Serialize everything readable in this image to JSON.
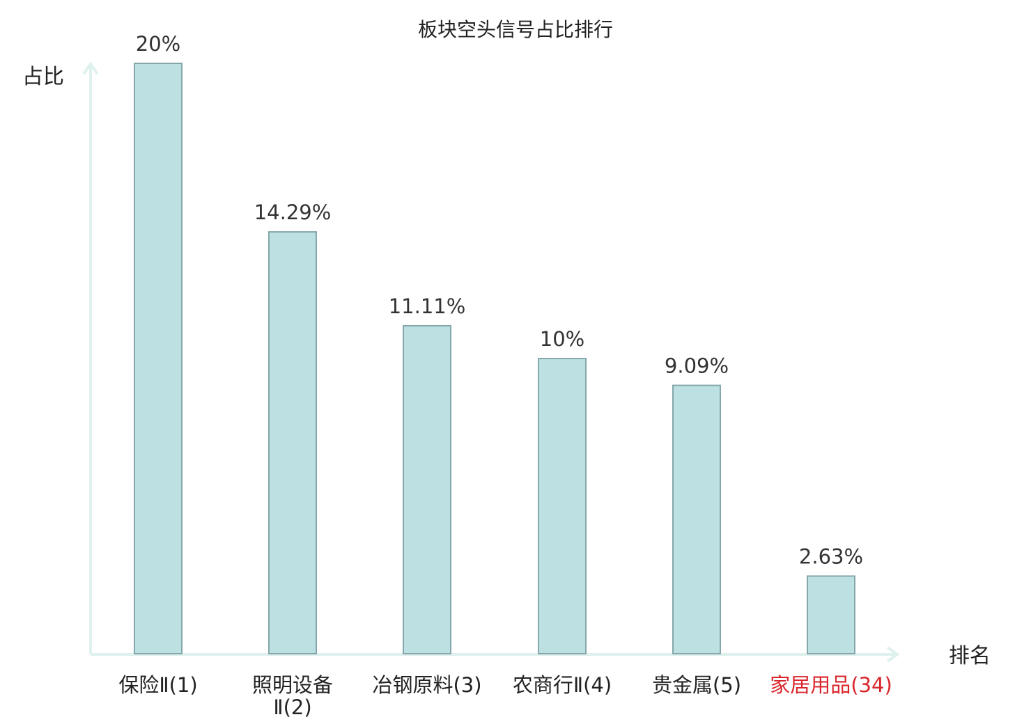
{
  "chart_data": {
    "type": "bar",
    "title": "板块空头信号占比排行",
    "ylabel": "占比",
    "xlabel": "排名",
    "ylim": [
      0,
      20
    ],
    "categories": [
      {
        "name": "保险Ⅱ",
        "rank": "(1)",
        "highlight": false
      },
      {
        "name": "照明设备Ⅱ",
        "rank": "(2)",
        "highlight": false
      },
      {
        "name": "冶钢原料",
        "rank": "(3)",
        "highlight": false
      },
      {
        "name": "农商行Ⅱ",
        "rank": "(4)",
        "highlight": false
      },
      {
        "name": "贵金属",
        "rank": "(5)",
        "highlight": false
      },
      {
        "name": "家居用品",
        "rank": "(34)",
        "highlight": true
      }
    ],
    "values": [
      20,
      14.29,
      11.11,
      10,
      9.09,
      2.63
    ],
    "value_labels": [
      "20%",
      "14.29%",
      "11.11%",
      "10%",
      "9.09%",
      "2.63%"
    ],
    "grid": false,
    "colors": {
      "bar_fill": "#bde0e3",
      "bar_stroke": "#86a7aa",
      "axis": "#dff1ee",
      "highlight_text": "#d9262c"
    }
  }
}
